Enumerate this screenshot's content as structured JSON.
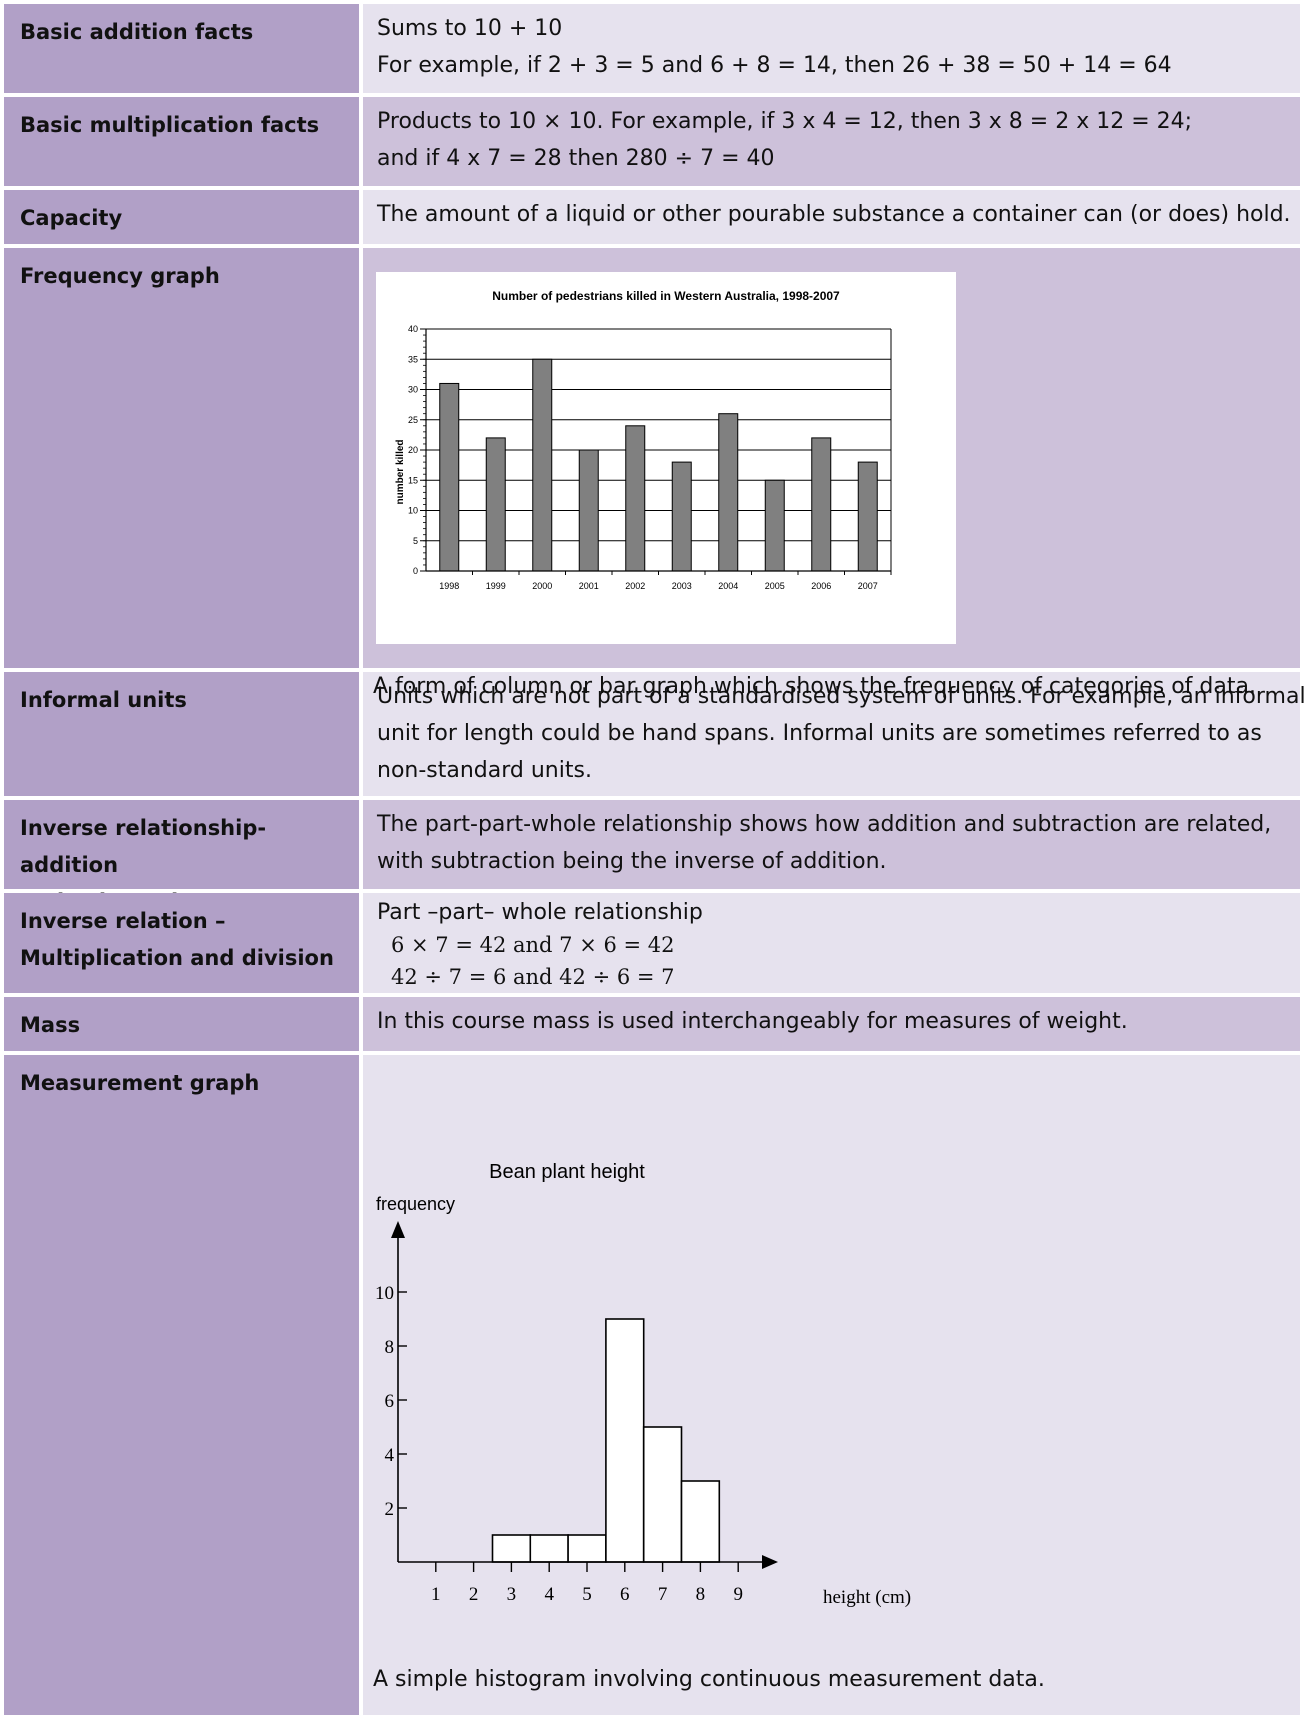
{
  "rows": [
    {
      "term": "Basic addition facts",
      "lines": [
        "Sums to 10 + 10",
        "For example, if 2 + 3 = 5 and 6 + 8 = 14, then 26 + 38 = 50 + 14 = 64"
      ]
    },
    {
      "term": "Basic multiplication facts",
      "lines": [
        "Products to 10 × 10. For example, if 3 x 4 = 12, then 3 x 8 = 2 x 12 = 24;",
        "and if 4 x 7 = 28 then 280 ÷ 7 = 40"
      ]
    },
    {
      "term": "Capacity",
      "lines": [
        "The amount of a liquid or other pourable substance a container can (or does) hold."
      ]
    },
    {
      "term": "Frequency graph",
      "caption": "A form of column or bar graph which shows the frequency of categories of data."
    },
    {
      "term": "Informal units",
      "lines": [
        "Units which are not part of a standardised system of units. For example, an informal",
        "unit for length could be hand spans. Informal units are sometimes referred to as",
        "non-standard units."
      ]
    },
    {
      "term_lines": [
        "Inverse relationship- addition",
        "and subtraction"
      ],
      "lines": [
        "The part-part-whole relationship shows how addition and subtraction are related,",
        "with subtraction being the inverse of addition."
      ]
    },
    {
      "term_lines": [
        "Inverse relation –",
        "Multiplication and division"
      ],
      "lines": [
        "Part –part– whole relationship"
      ],
      "math_lines": [
        "6 × 7  =  42 and 7 × 6 = 42",
        "42 ÷ 7 = 6 and 42 ÷ 6 = 7"
      ]
    },
    {
      "term": "Mass",
      "lines": [
        "In this course mass is used interchangeably for measures of weight."
      ]
    },
    {
      "term": "Measurement graph",
      "caption": "A simple histogram involving continuous measurement data."
    }
  ],
  "chart_data": [
    {
      "type": "bar",
      "title": "Number of pedestrians killed in Western Australia, 1998-2007",
      "xlabel": "",
      "ylabel": "number killed",
      "categories": [
        "1998",
        "1999",
        "2000",
        "2001",
        "2002",
        "2003",
        "2004",
        "2005",
        "2006",
        "2007"
      ],
      "values": [
        31,
        22,
        35,
        20,
        24,
        18,
        26,
        15,
        22,
        18
      ],
      "ylim": [
        0,
        40
      ],
      "yticks": [
        0,
        5,
        10,
        15,
        20,
        25,
        30,
        35,
        40
      ],
      "grid": true,
      "bar_color": "#808080"
    },
    {
      "type": "bar",
      "title": "Bean plant height",
      "xlabel": "height (cm)",
      "ylabel": "frequency",
      "categories": [
        "3",
        "4",
        "5",
        "6",
        "7",
        "8"
      ],
      "values": [
        1,
        1,
        1,
        9,
        5,
        3
      ],
      "xticks": [
        "1",
        "2",
        "3",
        "4",
        "5",
        "6",
        "7",
        "8",
        "9"
      ],
      "yticks": [
        "2",
        "4",
        "6",
        "8",
        "10"
      ],
      "ylim": [
        0,
        11
      ],
      "grid": false
    }
  ]
}
